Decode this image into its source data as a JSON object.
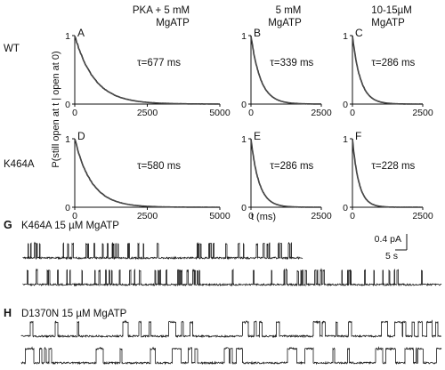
{
  "figure": {
    "column_titles": [
      [
        "PKA + 5 mM",
        "MgATP"
      ],
      [
        "5 mM",
        "MgATP"
      ],
      [
        "10-15µM",
        "MgATP"
      ]
    ],
    "row_labels": [
      "WT",
      "K464A"
    ],
    "y_axis_label": "P(still open at t | open at 0)",
    "x_axis_label": "t (ms)",
    "scale_bar": {
      "current": "0.4 pA",
      "time": "5 s"
    },
    "traces": [
      {
        "letter": "G",
        "title": "K464A  15 µM MgATP"
      },
      {
        "letter": "H",
        "title": "D1370N  15 µM MgATP"
      }
    ]
  },
  "chart_data": [
    {
      "panel": "A",
      "type": "line",
      "row": "WT",
      "column": "PKA + 5 mM MgATP",
      "annotation": "τ=677 ms",
      "tau_ms": 677,
      "xlim": [
        0,
        5000
      ],
      "ylim": [
        0,
        1
      ],
      "xticks": [
        0,
        2500,
        5000
      ],
      "yticks": [
        0,
        1
      ]
    },
    {
      "panel": "B",
      "type": "line",
      "row": "WT",
      "column": "5 mM MgATP",
      "annotation": "τ=339 ms",
      "tau_ms": 339,
      "xlim": [
        0,
        2500
      ],
      "ylim": [
        0,
        1
      ],
      "xticks": [
        0,
        2500
      ],
      "yticks": [
        0,
        1
      ]
    },
    {
      "panel": "C",
      "type": "line",
      "row": "WT",
      "column": "10-15µM MgATP",
      "annotation": "τ=286 ms",
      "tau_ms": 286,
      "xlim": [
        0,
        2500
      ],
      "ylim": [
        0,
        1
      ],
      "xticks": [
        0,
        2500
      ],
      "yticks": [
        0,
        1
      ]
    },
    {
      "panel": "D",
      "type": "line",
      "row": "K464A",
      "column": "PKA + 5 mM MgATP",
      "annotation": "τ=580 ms",
      "tau_ms": 580,
      "xlim": [
        0,
        5000
      ],
      "ylim": [
        0,
        1
      ],
      "xticks": [
        0,
        2500,
        5000
      ],
      "yticks": [
        0,
        1
      ]
    },
    {
      "panel": "E",
      "type": "line",
      "row": "K464A",
      "column": "5 mM MgATP",
      "annotation": "τ=286 ms",
      "tau_ms": 286,
      "xlim": [
        0,
        2500
      ],
      "ylim": [
        0,
        1
      ],
      "xticks": [
        0,
        2500
      ],
      "yticks": [
        0,
        1
      ]
    },
    {
      "panel": "F",
      "type": "line",
      "row": "K464A",
      "column": "10-15µM MgATP",
      "annotation": "τ=228 ms",
      "tau_ms": 228,
      "xlim": [
        0,
        2500
      ],
      "ylim": [
        0,
        1
      ],
      "xticks": [
        0,
        2500
      ],
      "yticks": [
        0,
        1
      ]
    }
  ]
}
